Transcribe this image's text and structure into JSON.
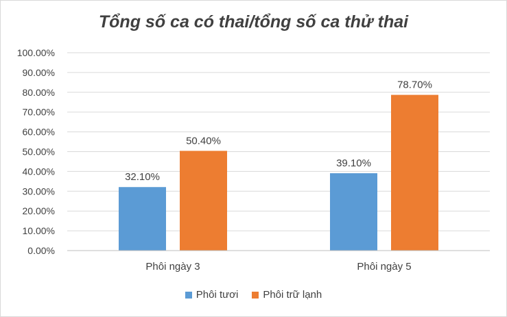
{
  "chart_data": {
    "type": "bar",
    "title": "Tổng số ca có thai/tổng số ca thử thai",
    "categories": [
      "Phôi ngày 3",
      "Phôi ngày 5"
    ],
    "series": [
      {
        "name": "Phôi tươi",
        "values": [
          32.1,
          39.1
        ],
        "labels": [
          "32.10%",
          "39.10%"
        ],
        "color": "#5b9bd5"
      },
      {
        "name": "Phôi trữ lạnh",
        "values": [
          50.4,
          78.7
        ],
        "labels": [
          "50.40%",
          "78.70%"
        ],
        "color": "#ed7d31"
      }
    ],
    "ylim": [
      0,
      100
    ],
    "yticks": [
      "0.00%",
      "10.00%",
      "20.00%",
      "30.00%",
      "40.00%",
      "50.00%",
      "60.00%",
      "70.00%",
      "80.00%",
      "90.00%",
      "100.00%"
    ],
    "grid": true,
    "legend_position": "bottom"
  }
}
